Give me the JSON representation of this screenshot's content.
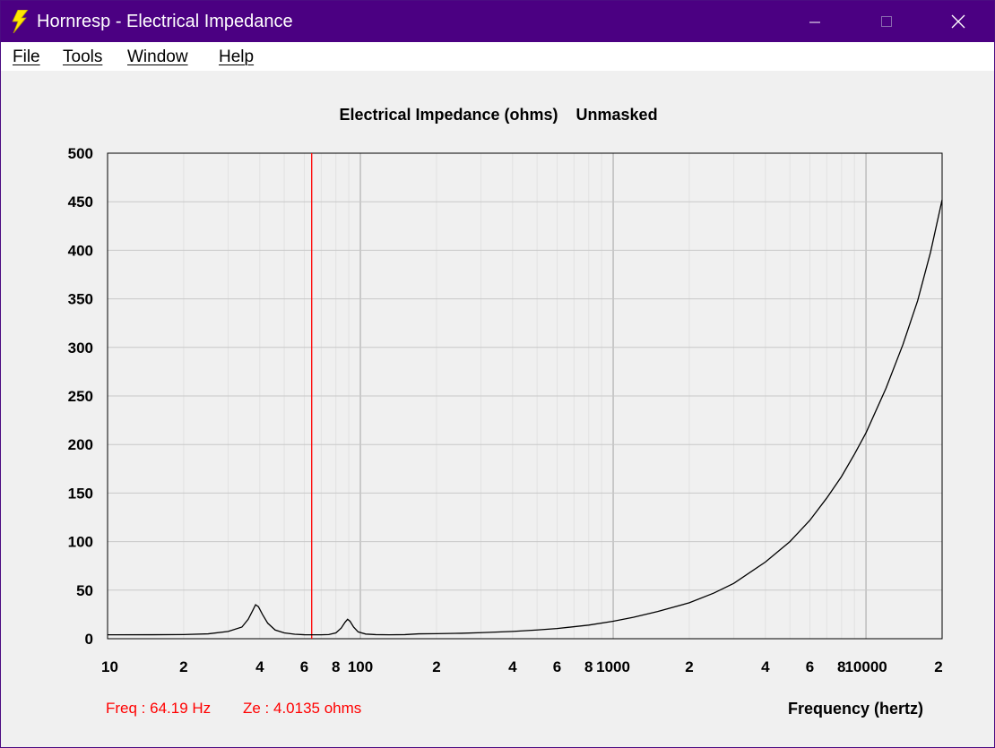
{
  "window": {
    "title": "Hornresp - Electrical Impedance",
    "minimize_icon": "minimize-icon",
    "maximize_icon": "maximize-icon",
    "close_icon": "close-icon",
    "app_icon": "lightning-bolt-icon"
  },
  "menu": {
    "items": [
      {
        "label": "File"
      },
      {
        "label": "Tools"
      },
      {
        "label": "Window"
      },
      {
        "label": "Help"
      }
    ]
  },
  "readout": {
    "freq": "Freq : 64.19 Hz",
    "ze": "Ze : 4.0135 ohms"
  },
  "chart_data": {
    "type": "line",
    "title": "Electrical Impedance (ohms)    Unmasked",
    "xlabel": "Frequency (hertz)",
    "ylabel": "",
    "xscale": "log",
    "xlim": [
      10,
      20000
    ],
    "ylim": [
      0,
      500
    ],
    "grid": true,
    "yticks": [
      "0",
      "50",
      "100",
      "150",
      "200",
      "250",
      "300",
      "350",
      "400",
      "450",
      "500"
    ],
    "xtick_labels": [
      {
        "f": 10,
        "label": "10"
      },
      {
        "f": 20,
        "label": "2"
      },
      {
        "f": 40,
        "label": "4"
      },
      {
        "f": 60,
        "label": "6"
      },
      {
        "f": 80,
        "label": "8"
      },
      {
        "f": 100,
        "label": "100"
      },
      {
        "f": 200,
        "label": "2"
      },
      {
        "f": 400,
        "label": "4"
      },
      {
        "f": 600,
        "label": "6"
      },
      {
        "f": 800,
        "label": "8"
      },
      {
        "f": 1000,
        "label": "1000"
      },
      {
        "f": 2000,
        "label": "2"
      },
      {
        "f": 4000,
        "label": "4"
      },
      {
        "f": 6000,
        "label": "6"
      },
      {
        "f": 8000,
        "label": "8"
      },
      {
        "f": 10000,
        "label": "10000"
      },
      {
        "f": 20000,
        "label": "2"
      }
    ],
    "marker": {
      "freq": 64.19,
      "color": "#ff0000"
    },
    "series": [
      {
        "color": "#000000",
        "points": [
          [
            10,
            4.0
          ],
          [
            15,
            4.1
          ],
          [
            20,
            4.3
          ],
          [
            25,
            5.0
          ],
          [
            30,
            7.5
          ],
          [
            34,
            12
          ],
          [
            36,
            20
          ],
          [
            37.5,
            29
          ],
          [
            38.5,
            35
          ],
          [
            39.5,
            33
          ],
          [
            41,
            25
          ],
          [
            43,
            16
          ],
          [
            46,
            9
          ],
          [
            50,
            6
          ],
          [
            55,
            4.6
          ],
          [
            60,
            4.1
          ],
          [
            64,
            4.0
          ],
          [
            70,
            4.0
          ],
          [
            75,
            4.3
          ],
          [
            80,
            6
          ],
          [
            84,
            11
          ],
          [
            87,
            17
          ],
          [
            89,
            20
          ],
          [
            91,
            18
          ],
          [
            94,
            12
          ],
          [
            98,
            7
          ],
          [
            105,
            4.8
          ],
          [
            115,
            4.2
          ],
          [
            130,
            4.0
          ],
          [
            150,
            4.2
          ],
          [
            170,
            5.0
          ],
          [
            200,
            5.2
          ],
          [
            250,
            5.6
          ],
          [
            300,
            6.2
          ],
          [
            400,
            7.5
          ],
          [
            500,
            9
          ],
          [
            600,
            10.5
          ],
          [
            800,
            14
          ],
          [
            1000,
            18
          ],
          [
            1200,
            22
          ],
          [
            1500,
            28
          ],
          [
            2000,
            37
          ],
          [
            2500,
            47
          ],
          [
            3000,
            57
          ],
          [
            4000,
            79
          ],
          [
            5000,
            100
          ],
          [
            6000,
            122
          ],
          [
            7000,
            145
          ],
          [
            8000,
            167
          ],
          [
            9000,
            190
          ],
          [
            10000,
            212
          ],
          [
            12000,
            258
          ],
          [
            14000,
            303
          ],
          [
            16000,
            348
          ],
          [
            18000,
            398
          ],
          [
            20000,
            452
          ]
        ]
      }
    ]
  }
}
